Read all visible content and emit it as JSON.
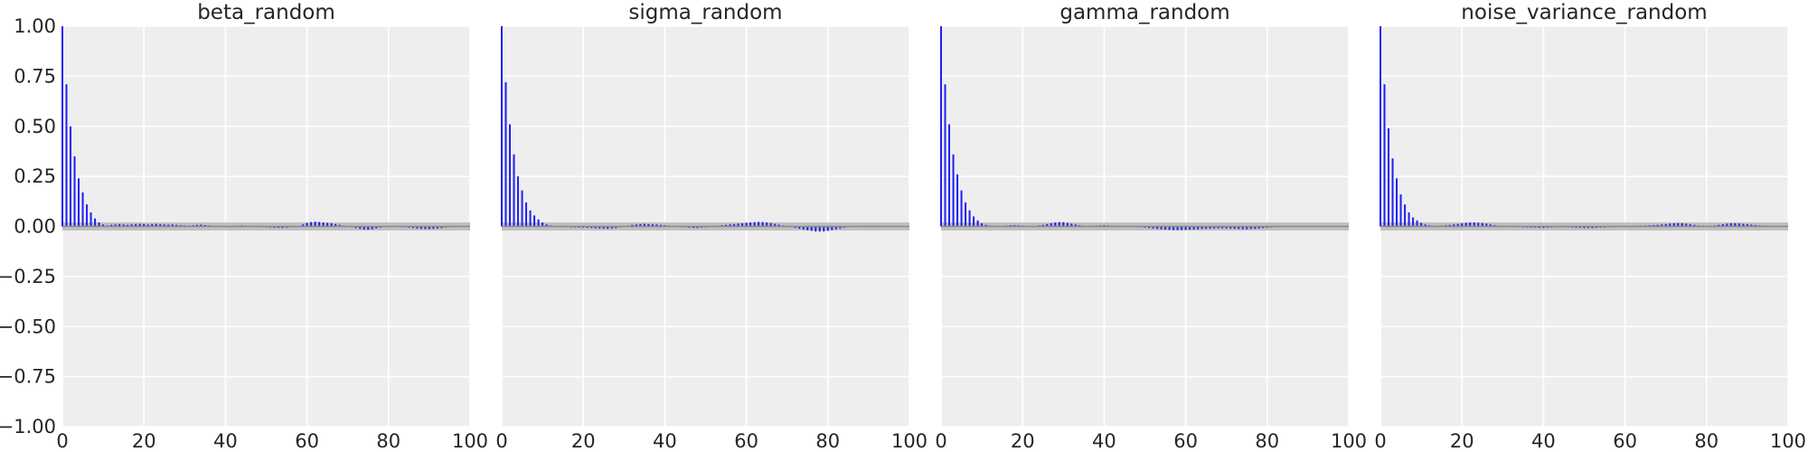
{
  "chart_data": [
    {
      "type": "bar",
      "title": "beta_random",
      "xlabel": "",
      "ylabel": "",
      "xlim": [
        0,
        100
      ],
      "ylim": [
        -1,
        1
      ],
      "x_ticks": [
        0,
        20,
        40,
        60,
        80,
        100
      ],
      "y_ticks": [
        -1.0,
        -0.75,
        -0.5,
        -0.25,
        0.0,
        0.25,
        0.5,
        0.75,
        1.0
      ],
      "y_tick_labels": [
        "−1.00",
        "−0.75",
        "−0.50",
        "−0.25",
        "0.00",
        "0.25",
        "0.50",
        "0.75",
        "1.00"
      ],
      "grid": true,
      "confidence_band": 0.02,
      "lags": [
        0,
        1,
        2,
        3,
        4,
        5,
        6,
        7,
        8,
        9,
        10,
        11,
        12,
        13,
        14,
        15,
        16,
        17,
        18,
        19,
        20,
        21,
        22,
        23,
        24,
        25,
        26,
        27,
        28,
        29,
        30,
        31,
        32,
        33,
        34,
        35,
        36,
        37,
        38,
        39,
        40,
        41,
        42,
        43,
        44,
        45,
        46,
        47,
        48,
        49,
        50,
        51,
        52,
        53,
        54,
        55,
        56,
        57,
        58,
        59,
        60,
        61,
        62,
        63,
        64,
        65,
        66,
        67,
        68,
        69,
        70,
        71,
        72,
        73,
        74,
        75,
        76,
        77,
        78,
        79,
        80,
        81,
        82,
        83,
        84,
        85,
        86,
        87,
        88,
        89,
        90,
        91,
        92,
        93,
        94,
        95,
        96,
        97,
        98,
        99
      ],
      "values": [
        1.0,
        0.71,
        0.5,
        0.35,
        0.24,
        0.17,
        0.11,
        0.07,
        0.04,
        0.02,
        0.01,
        0.005,
        0.008,
        0.01,
        0.012,
        0.01,
        0.008,
        0.01,
        0.012,
        0.013,
        0.012,
        0.01,
        0.012,
        0.013,
        0.011,
        0.01,
        0.009,
        0.01,
        0.008,
        0.006,
        0.005,
        0.004,
        0.006,
        0.008,
        0.009,
        0.007,
        0.005,
        0.003,
        0.002,
        0.002,
        0.001,
        0.002,
        0.003,
        0.004,
        0.005,
        0.003,
        0.002,
        -0.001,
        -0.002,
        -0.003,
        -0.004,
        -0.005,
        -0.006,
        -0.007,
        -0.008,
        -0.006,
        -0.004,
        -0.002,
        0.002,
        0.01,
        0.018,
        0.022,
        0.024,
        0.022,
        0.02,
        0.018,
        0.016,
        0.012,
        0.008,
        0.004,
        0.0,
        -0.004,
        -0.008,
        -0.012,
        -0.015,
        -0.016,
        -0.014,
        -0.01,
        -0.006,
        -0.002,
        0.001,
        0.002,
        0.001,
        -0.002,
        -0.004,
        -0.006,
        -0.008,
        -0.01,
        -0.012,
        -0.013,
        -0.013,
        -0.012,
        -0.01,
        -0.008,
        -0.005,
        -0.003,
        -0.001,
        0.0,
        0.001,
        0.001
      ]
    },
    {
      "type": "bar",
      "title": "sigma_random",
      "xlabel": "",
      "ylabel": "",
      "xlim": [
        0,
        100
      ],
      "ylim": [
        -1,
        1
      ],
      "x_ticks": [
        0,
        20,
        40,
        60,
        80,
        100
      ],
      "grid": true,
      "confidence_band": 0.02,
      "lags": [
        0,
        1,
        2,
        3,
        4,
        5,
        6,
        7,
        8,
        9,
        10,
        11,
        12,
        13,
        14,
        15,
        16,
        17,
        18,
        19,
        20,
        21,
        22,
        23,
        24,
        25,
        26,
        27,
        28,
        29,
        30,
        31,
        32,
        33,
        34,
        35,
        36,
        37,
        38,
        39,
        40,
        41,
        42,
        43,
        44,
        45,
        46,
        47,
        48,
        49,
        50,
        51,
        52,
        53,
        54,
        55,
        56,
        57,
        58,
        59,
        60,
        61,
        62,
        63,
        64,
        65,
        66,
        67,
        68,
        69,
        70,
        71,
        72,
        73,
        74,
        75,
        76,
        77,
        78,
        79,
        80,
        81,
        82,
        83,
        84,
        85,
        86,
        87,
        88,
        89,
        90,
        91,
        92,
        93,
        94,
        95,
        96,
        97,
        98,
        99
      ],
      "values": [
        1.0,
        0.72,
        0.51,
        0.36,
        0.25,
        0.18,
        0.12,
        0.08,
        0.055,
        0.035,
        0.02,
        0.01,
        0.005,
        0.002,
        0.0,
        -0.002,
        -0.003,
        -0.004,
        -0.005,
        -0.006,
        -0.006,
        -0.007,
        -0.008,
        -0.009,
        -0.01,
        -0.011,
        -0.012,
        -0.01,
        -0.008,
        -0.004,
        0.0,
        0.004,
        0.008,
        0.01,
        0.012,
        0.013,
        0.012,
        0.011,
        0.01,
        0.008,
        0.006,
        0.004,
        0.002,
        0.0,
        -0.002,
        -0.004,
        -0.006,
        -0.007,
        -0.008,
        -0.006,
        -0.004,
        -0.002,
        0.001,
        0.004,
        0.006,
        0.008,
        0.01,
        0.012,
        0.014,
        0.016,
        0.018,
        0.02,
        0.022,
        0.023,
        0.022,
        0.02,
        0.017,
        0.013,
        0.009,
        0.005,
        0.001,
        -0.003,
        -0.007,
        -0.011,
        -0.015,
        -0.019,
        -0.022,
        -0.025,
        -0.026,
        -0.025,
        -0.022,
        -0.018,
        -0.014,
        -0.01,
        -0.006,
        -0.003,
        -0.001,
        0.0,
        0.001,
        0.002,
        0.003,
        0.003,
        0.002,
        0.001,
        0.0,
        -0.001,
        -0.002,
        -0.002,
        -0.001,
        0.0
      ]
    },
    {
      "type": "bar",
      "title": "gamma_random",
      "xlabel": "",
      "ylabel": "",
      "xlim": [
        0,
        100
      ],
      "ylim": [
        -1,
        1
      ],
      "x_ticks": [
        0,
        20,
        40,
        60,
        80,
        100
      ],
      "grid": true,
      "confidence_band": 0.02,
      "lags": [
        0,
        1,
        2,
        3,
        4,
        5,
        6,
        7,
        8,
        9,
        10,
        11,
        12,
        13,
        14,
        15,
        16,
        17,
        18,
        19,
        20,
        21,
        22,
        23,
        24,
        25,
        26,
        27,
        28,
        29,
        30,
        31,
        32,
        33,
        34,
        35,
        36,
        37,
        38,
        39,
        40,
        41,
        42,
        43,
        44,
        45,
        46,
        47,
        48,
        49,
        50,
        51,
        52,
        53,
        54,
        55,
        56,
        57,
        58,
        59,
        60,
        61,
        62,
        63,
        64,
        65,
        66,
        67,
        68,
        69,
        70,
        71,
        72,
        73,
        74,
        75,
        76,
        77,
        78,
        79,
        80,
        81,
        82,
        83,
        84,
        85,
        86,
        87,
        88,
        89,
        90,
        91,
        92,
        93,
        94,
        95,
        96,
        97,
        98,
        99
      ],
      "values": [
        1.0,
        0.71,
        0.51,
        0.36,
        0.26,
        0.18,
        0.12,
        0.08,
        0.05,
        0.03,
        0.015,
        0.008,
        0.004,
        0.002,
        0.001,
        0.002,
        0.004,
        0.006,
        0.007,
        0.006,
        0.004,
        0.002,
        0.0,
        0.002,
        0.005,
        0.008,
        0.012,
        0.016,
        0.02,
        0.022,
        0.021,
        0.018,
        0.014,
        0.01,
        0.006,
        0.003,
        0.001,
        0.002,
        0.004,
        0.005,
        0.006,
        0.005,
        0.004,
        0.003,
        0.002,
        0.001,
        0.0,
        -0.001,
        -0.002,
        -0.004,
        -0.006,
        -0.008,
        -0.01,
        -0.012,
        -0.014,
        -0.016,
        -0.017,
        -0.018,
        -0.018,
        -0.018,
        -0.017,
        -0.016,
        -0.015,
        -0.014,
        -0.013,
        -0.012,
        -0.011,
        -0.01,
        -0.009,
        -0.009,
        -0.01,
        -0.011,
        -0.012,
        -0.013,
        -0.014,
        -0.014,
        -0.013,
        -0.012,
        -0.01,
        -0.008,
        -0.006,
        -0.004,
        -0.003,
        -0.002,
        -0.001,
        0.0,
        0.001,
        0.002,
        0.002,
        0.001,
        0.0,
        -0.001,
        -0.001,
        0.0,
        0.001,
        0.001,
        0.0,
        0.0,
        0.0,
        0.0
      ]
    },
    {
      "type": "bar",
      "title": "noise_variance_random",
      "xlabel": "",
      "ylabel": "",
      "xlim": [
        0,
        100
      ],
      "ylim": [
        -1,
        1
      ],
      "x_ticks": [
        0,
        20,
        40,
        60,
        80,
        100
      ],
      "grid": true,
      "confidence_band": 0.02,
      "lags": [
        0,
        1,
        2,
        3,
        4,
        5,
        6,
        7,
        8,
        9,
        10,
        11,
        12,
        13,
        14,
        15,
        16,
        17,
        18,
        19,
        20,
        21,
        22,
        23,
        24,
        25,
        26,
        27,
        28,
        29,
        30,
        31,
        32,
        33,
        34,
        35,
        36,
        37,
        38,
        39,
        40,
        41,
        42,
        43,
        44,
        45,
        46,
        47,
        48,
        49,
        50,
        51,
        52,
        53,
        54,
        55,
        56,
        57,
        58,
        59,
        60,
        61,
        62,
        63,
        64,
        65,
        66,
        67,
        68,
        69,
        70,
        71,
        72,
        73,
        74,
        75,
        76,
        77,
        78,
        79,
        80,
        81,
        82,
        83,
        84,
        85,
        86,
        87,
        88,
        89,
        90,
        91,
        92,
        93,
        94,
        95,
        96,
        97,
        98,
        99
      ],
      "values": [
        1.0,
        0.71,
        0.49,
        0.34,
        0.24,
        0.16,
        0.11,
        0.07,
        0.045,
        0.03,
        0.018,
        0.01,
        0.006,
        0.004,
        0.003,
        0.004,
        0.006,
        0.008,
        0.01,
        0.012,
        0.015,
        0.018,
        0.02,
        0.02,
        0.019,
        0.017,
        0.014,
        0.01,
        0.006,
        0.003,
        0.001,
        0.0,
        -0.001,
        -0.002,
        -0.003,
        -0.004,
        -0.005,
        -0.006,
        -0.006,
        -0.007,
        -0.007,
        -0.006,
        -0.005,
        -0.004,
        -0.003,
        -0.003,
        -0.004,
        -0.005,
        -0.006,
        -0.007,
        -0.008,
        -0.008,
        -0.008,
        -0.007,
        -0.006,
        -0.005,
        -0.004,
        -0.003,
        -0.002,
        -0.001,
        0.0,
        0.001,
        0.002,
        0.003,
        0.004,
        0.005,
        0.006,
        0.007,
        0.008,
        0.01,
        0.012,
        0.014,
        0.016,
        0.017,
        0.016,
        0.014,
        0.011,
        0.008,
        0.005,
        0.003,
        0.002,
        0.003,
        0.005,
        0.008,
        0.011,
        0.014,
        0.016,
        0.016,
        0.015,
        0.013,
        0.011,
        0.009,
        0.007,
        0.005,
        0.004,
        0.003,
        0.002,
        0.001,
        0.0,
        0.0
      ]
    }
  ]
}
